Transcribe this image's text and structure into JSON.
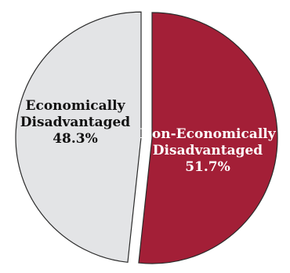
{
  "chart_data": {
    "type": "pie",
    "slices": [
      {
        "label_lines": [
          "Non-Economically",
          "Disadvantaged",
          "51.7%"
        ],
        "name": "Non-Economically Disadvantaged",
        "value": 51.7,
        "color": "#a31f37",
        "text_color": "#ffffff",
        "exploded": false
      },
      {
        "label_lines": [
          "Economically",
          "Disadvantaged",
          "48.3%"
        ],
        "name": "Economically Disadvantaged",
        "value": 48.3,
        "color": "#e3e4e6",
        "text_color": "#111111",
        "exploded": true
      }
    ],
    "start_angle_deg": 0,
    "direction": "clockwise",
    "edge_color": "#2b2b2b"
  }
}
